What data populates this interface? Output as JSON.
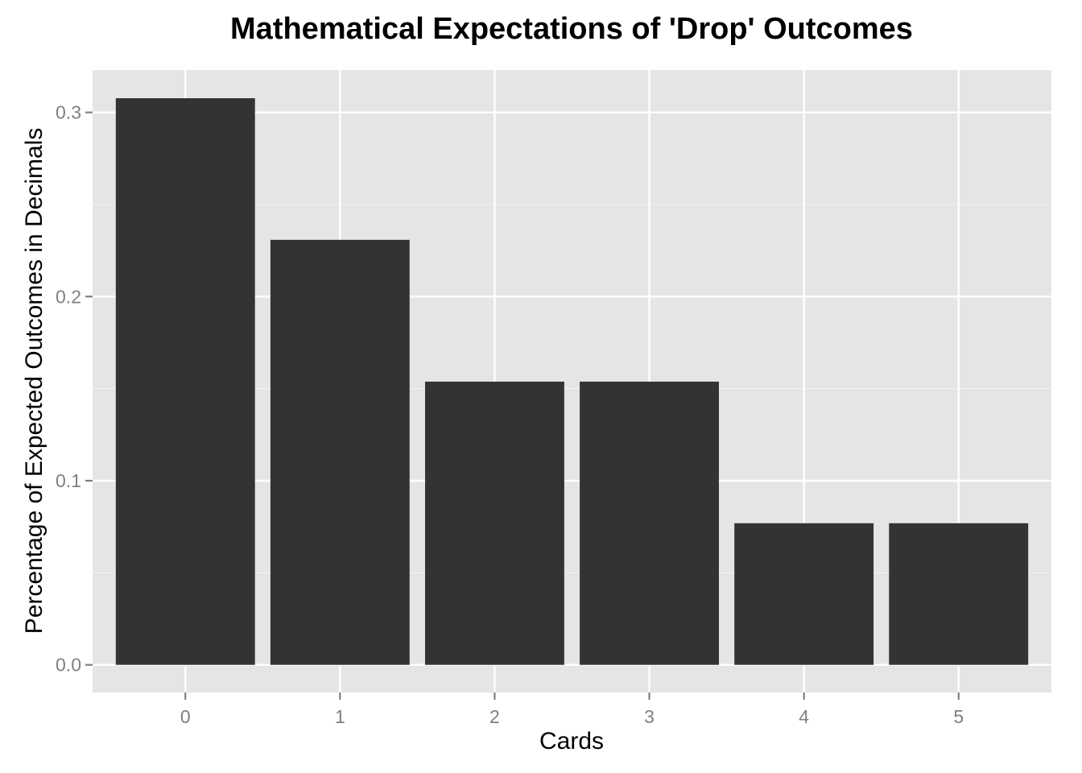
{
  "chart_data": {
    "type": "bar",
    "title": "Mathematical Expectations of 'Drop' Outcomes",
    "xlabel": "Cards",
    "ylabel": "Percentage of Expected Outcomes in Decimals",
    "categories": [
      "0",
      "1",
      "2",
      "3",
      "4",
      "5"
    ],
    "values": [
      0.3077,
      0.2308,
      0.1538,
      0.1538,
      0.0769,
      0.0769
    ],
    "ylim": [
      -0.015,
      0.323
    ],
    "yticks": [
      0.0,
      0.1,
      0.2,
      0.3
    ],
    "ytick_labels": [
      "0.0",
      "0.1",
      "0.2",
      "0.3"
    ],
    "grid": true,
    "legend": "none",
    "colors": {
      "panel_background": "#e5e5e5",
      "grid_major": "#ffffff",
      "grid_minor": "#f2f2f2",
      "bar_fill": "#333333",
      "tick_label": "#7f7f7f",
      "tick_mark": "#7f7f7f"
    }
  }
}
